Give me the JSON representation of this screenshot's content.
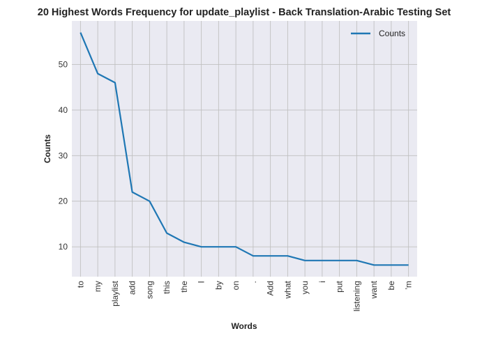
{
  "chart_data": {
    "type": "line",
    "title": "20 Highest Words Frequency for update_playlist - Back Translation-Arabic Testing Set",
    "xlabel": "Words",
    "ylabel": "Counts",
    "categories": [
      "to",
      "my",
      "playlist",
      "add",
      "song",
      "this",
      "the",
      "I",
      "by",
      "on",
      ".",
      "Add",
      "what",
      "you",
      "i",
      "put",
      "listening",
      "want",
      "be",
      "'m"
    ],
    "series": [
      {
        "name": "Counts",
        "values": [
          57,
          48,
          46,
          22,
          20,
          13,
          11,
          10,
          10,
          10,
          8,
          8,
          8,
          7,
          7,
          7,
          7,
          6,
          6,
          6
        ],
        "color": "#1f77b4"
      }
    ],
    "ylim": [
      3.45,
      59.55
    ],
    "yticks": [
      10,
      20,
      30,
      40,
      50
    ],
    "grid": true,
    "legend_position": "top-right",
    "background": "#eaeaf2",
    "grid_color": "#c0c0c0"
  }
}
